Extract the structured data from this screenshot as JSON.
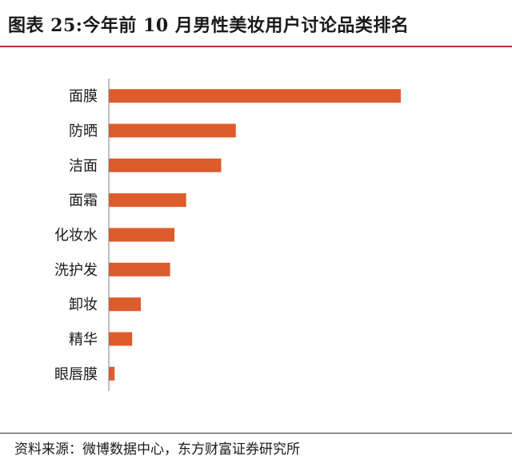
{
  "title": "图表 25:今年前 10 月男性美妆用户讨论品类排名",
  "source": "资料来源：微博数据中心，东方财富证券研究所",
  "colors": {
    "bar": "#de5b2c",
    "rule": "#b9302e"
  },
  "chart_data": {
    "type": "bar",
    "orientation": "horizontal",
    "title": "图表 25:今年前 10 月男性美妆用户讨论品类排名",
    "xlabel": "",
    "ylabel": "",
    "grid": false,
    "legend": "none",
    "xlim": [
      0,
      100
    ],
    "categories": [
      "面膜",
      "防晒",
      "洁面",
      "面霜",
      "化妆水",
      "洗护发",
      "卸妆",
      "精华",
      "眼唇膜"
    ],
    "values": [
      100,
      43.5,
      38.5,
      26.5,
      22.5,
      21,
      11,
      8,
      2
    ]
  }
}
